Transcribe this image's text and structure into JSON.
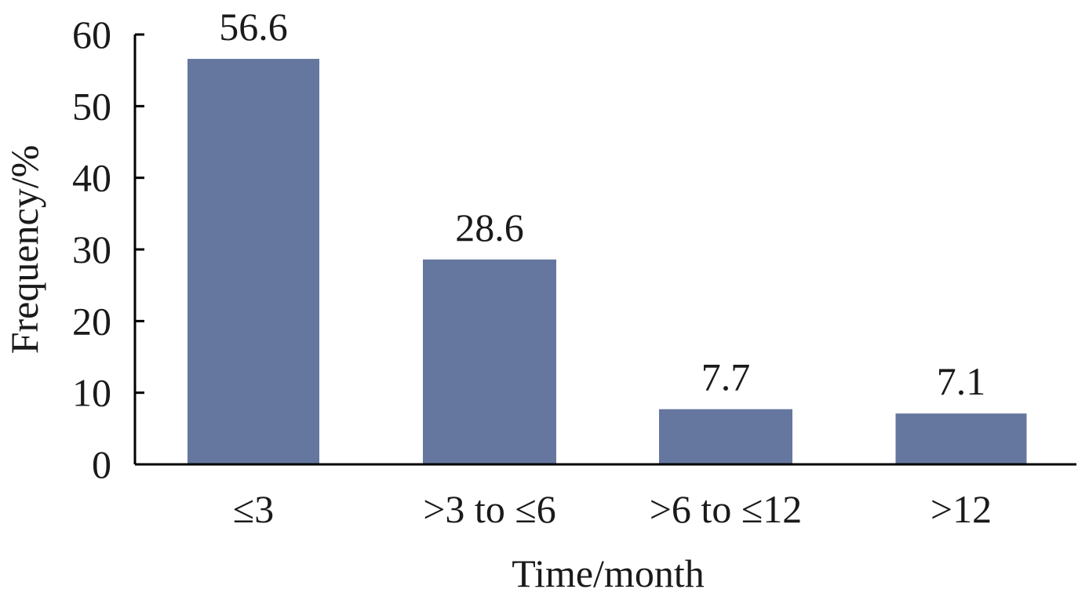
{
  "chart_data": {
    "type": "bar",
    "categories": [
      "≤3",
      ">3 to ≤6",
      ">6 to ≤12",
      ">12"
    ],
    "values": [
      56.6,
      28.6,
      7.7,
      7.1
    ],
    "data_labels": [
      "56.6",
      "28.6",
      "7.7",
      "7.1"
    ],
    "title": "",
    "xlabel": "Time/month",
    "ylabel": "Frequency/%",
    "ylim": [
      0,
      60
    ],
    "yticks": [
      0,
      10,
      20,
      30,
      40,
      50,
      60
    ],
    "grid": false,
    "legend": "none",
    "bar_color": "#65779e",
    "axis_color": "#000000"
  }
}
